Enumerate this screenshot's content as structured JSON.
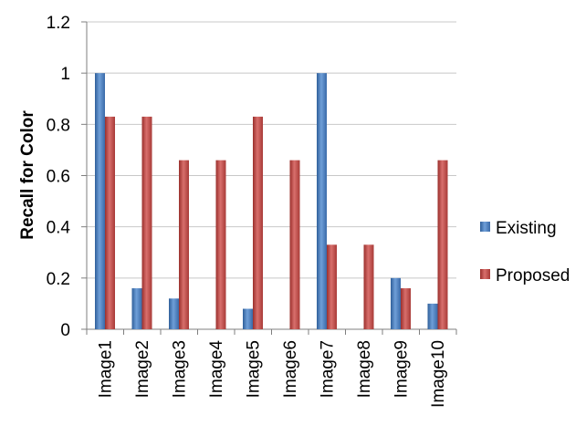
{
  "chart_data": {
    "type": "bar",
    "title": "",
    "xlabel": "",
    "ylabel": "Recall for Color",
    "ylim": [
      0,
      1.2
    ],
    "yticks": [
      "0",
      "0.2",
      "0.4",
      "0.6",
      "0.8",
      "1",
      "1.2"
    ],
    "ytick_values": [
      0,
      0.2,
      0.4,
      0.6,
      0.8,
      1.0,
      1.2
    ],
    "grid": true,
    "legend_position": "right",
    "categories": [
      "Image1",
      "Image2",
      "Image3",
      "Image4",
      "Image5",
      "Image6",
      "Image7",
      "Image8",
      "Image9",
      "Image10"
    ],
    "series": [
      {
        "name": "Existing",
        "color": "#4a7ebb",
        "values": [
          1.0,
          0.16,
          0.12,
          0.0,
          0.08,
          0.0,
          1.0,
          0.0,
          0.2,
          0.1
        ]
      },
      {
        "name": "Proposed",
        "color": "#c0504d",
        "values": [
          0.83,
          0.83,
          0.66,
          0.66,
          0.83,
          0.66,
          0.33,
          0.33,
          0.16,
          0.66
        ]
      }
    ]
  }
}
